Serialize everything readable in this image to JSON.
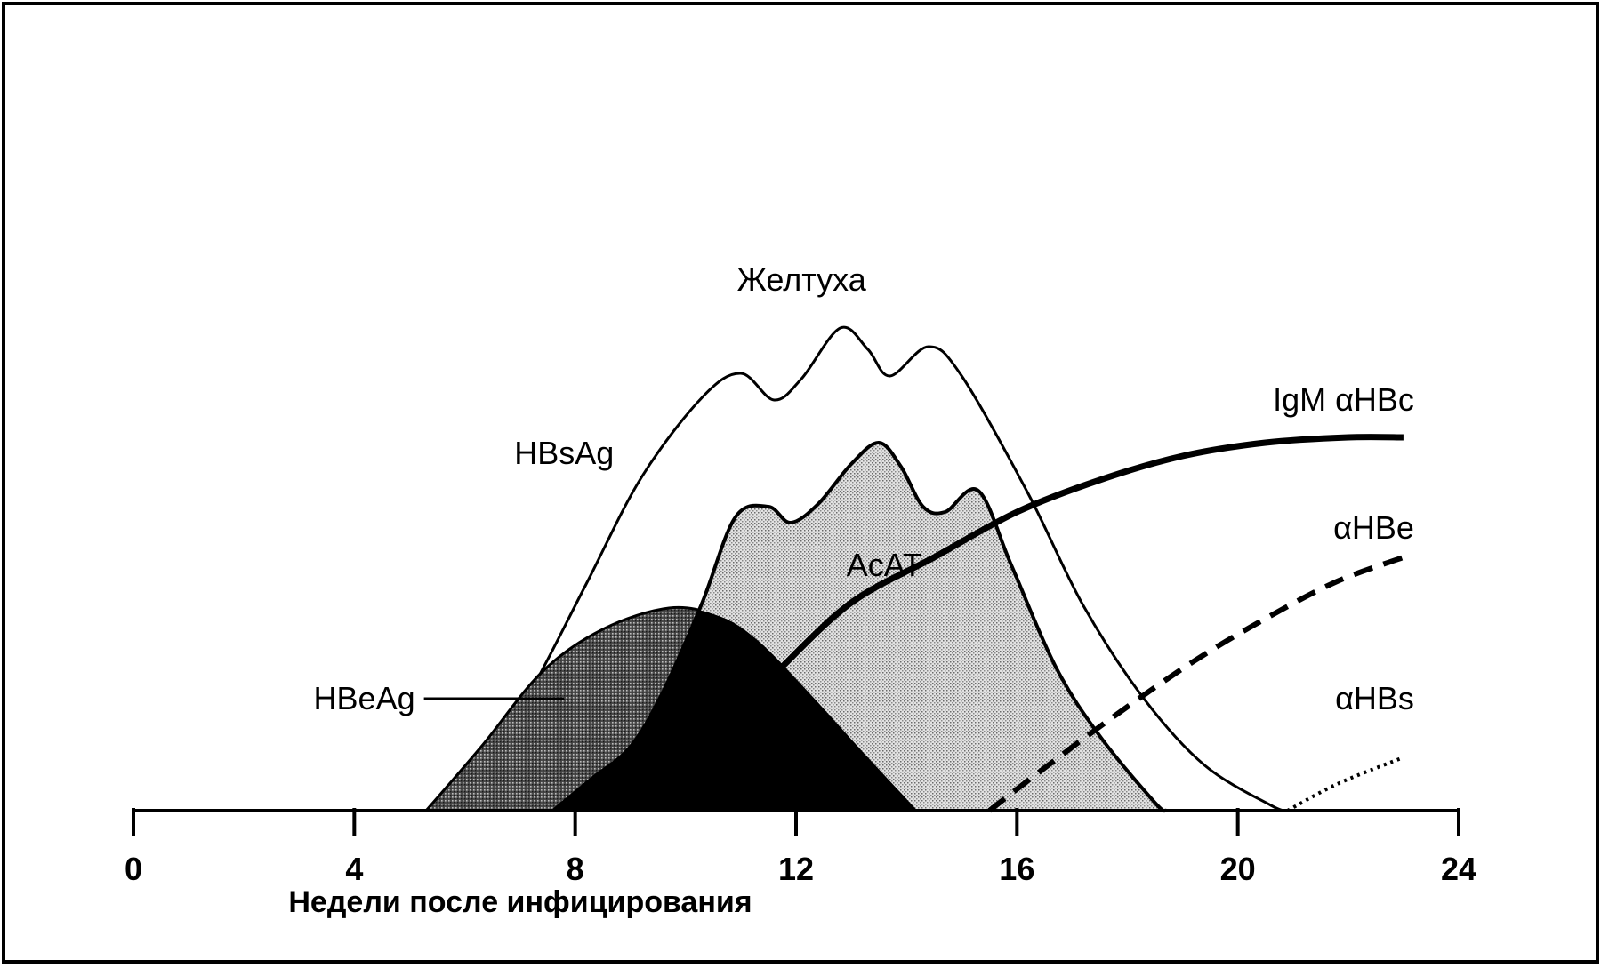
{
  "chart_data": {
    "type": "area",
    "title": "",
    "xlabel": "Недели после инфицирования",
    "ylabel": "",
    "xlim": [
      0,
      24
    ],
    "x_ticks": [
      "0",
      "4",
      "8",
      "12",
      "16",
      "20",
      "24"
    ],
    "tick_values": [
      0,
      4,
      8,
      12,
      16,
      20,
      24
    ],
    "grid": false,
    "legend": "none",
    "series": [
      {
        "name": "HBsAg",
        "fill": "white",
        "points": [
          [
            5.5,
            0
          ],
          [
            6.3,
            0.15
          ],
          [
            7.2,
            0.45
          ],
          [
            8.2,
            0.85
          ],
          [
            9.2,
            1.25
          ],
          [
            10.3,
            1.55
          ],
          [
            11.0,
            1.64
          ],
          [
            11.6,
            1.54
          ],
          [
            12.1,
            1.62
          ],
          [
            12.8,
            1.81
          ],
          [
            13.3,
            1.73
          ],
          [
            13.7,
            1.63
          ],
          [
            14.4,
            1.74
          ],
          [
            15.0,
            1.63
          ],
          [
            16.2,
            1.19
          ],
          [
            17.2,
            0.77
          ],
          [
            18.3,
            0.42
          ],
          [
            19.4,
            0.17
          ],
          [
            20.6,
            0.02
          ],
          [
            20.9,
            0
          ]
        ]
      },
      {
        "name": "АсАТ",
        "fill": "lightdots",
        "points": [
          [
            7.6,
            0
          ],
          [
            8.3,
            0.12
          ],
          [
            9.0,
            0.24
          ],
          [
            9.6,
            0.45
          ],
          [
            10.3,
            0.78
          ],
          [
            10.9,
            1.1
          ],
          [
            11.5,
            1.14
          ],
          [
            11.9,
            1.08
          ],
          [
            12.4,
            1.15
          ],
          [
            13.0,
            1.3
          ],
          [
            13.5,
            1.38
          ],
          [
            13.9,
            1.29
          ],
          [
            14.3,
            1.14
          ],
          [
            14.7,
            1.12
          ],
          [
            15.3,
            1.2
          ],
          [
            15.9,
            0.92
          ],
          [
            16.7,
            0.54
          ],
          [
            17.5,
            0.28
          ],
          [
            18.5,
            0.03
          ],
          [
            18.7,
            0
          ]
        ]
      },
      {
        "name": "HBeAg",
        "fill": "darkdots",
        "points": [
          [
            5.3,
            0
          ],
          [
            6.3,
            0.24
          ],
          [
            7.4,
            0.52
          ],
          [
            8.5,
            0.68
          ],
          [
            9.7,
            0.76
          ],
          [
            10.6,
            0.73
          ],
          [
            11.3,
            0.64
          ],
          [
            12.2,
            0.45
          ],
          [
            13.3,
            0.2
          ],
          [
            14.2,
            0
          ]
        ]
      },
      {
        "name": "IgM αHBc",
        "style": "thick",
        "points": [
          [
            11.7,
            0.53
          ],
          [
            13.0,
            0.78
          ],
          [
            14.5,
            0.95
          ],
          [
            16.0,
            1.12
          ],
          [
            17.5,
            1.24
          ],
          [
            19.0,
            1.33
          ],
          [
            20.5,
            1.38
          ],
          [
            22.0,
            1.4
          ],
          [
            23.0,
            1.4
          ]
        ]
      },
      {
        "name": "αHBe",
        "style": "dashed",
        "points": [
          [
            15.5,
            0
          ],
          [
            16.5,
            0.16
          ],
          [
            17.8,
            0.36
          ],
          [
            19.2,
            0.56
          ],
          [
            20.5,
            0.72
          ],
          [
            21.8,
            0.86
          ],
          [
            23.0,
            0.95
          ]
        ]
      },
      {
        "name": "αHBs",
        "style": "dotted",
        "points": [
          [
            20.9,
            0
          ],
          [
            21.8,
            0.1
          ],
          [
            23.0,
            0.2
          ]
        ]
      }
    ],
    "annotations": [
      {
        "text": "Желтуха",
        "x": 12.1,
        "y": 1.95
      },
      {
        "text": "HBsAg",
        "x": 7.8,
        "y": 1.3
      },
      {
        "text": "АсАТ",
        "x": 13.6,
        "y": 0.88
      },
      {
        "text": "HBeAg",
        "x": 5.1,
        "y": 0.38,
        "pointer_to": [
          7.8,
          0.38
        ]
      },
      {
        "text": "IgM αHBc",
        "x": 23.0,
        "y": 1.5
      },
      {
        "text": "αHBe",
        "x": 23.0,
        "y": 1.02
      },
      {
        "text": "αHBs",
        "x": 23.0,
        "y": 0.38
      }
    ]
  }
}
